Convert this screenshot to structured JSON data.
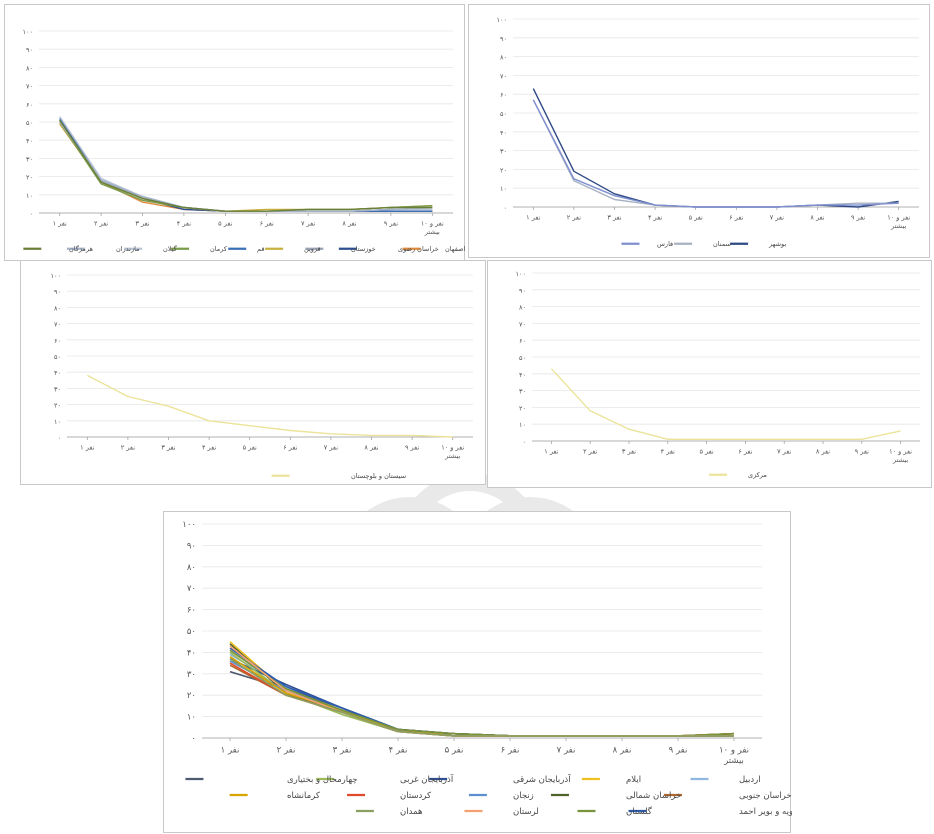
{
  "y_ticks": [
    "۰",
    "۱۰",
    "۲۰",
    "۳۰",
    "۴۰",
    "۵۰",
    "۶۰",
    "۷۰",
    "۸۰",
    "۹۰",
    "۱۰۰"
  ],
  "chart_data": [
    {
      "id": "p1",
      "type": "line",
      "categories": [
        "۱ نفر",
        "۲ نفر",
        "۳ نفر",
        "۴ نفر",
        "۵ نفر",
        "۶ نفر",
        "۷ نفر",
        "۸ نفر",
        "۹ نفر",
        "۱۰ نفر و بیشتر"
      ],
      "ylim": [
        0,
        100
      ],
      "series": [
        {
          "name": "اصفهان",
          "color": "#e08a3c",
          "values": [
            49,
            17,
            6,
            2,
            1,
            1,
            1,
            1,
            1,
            1
          ]
        },
        {
          "name": "خراسان رضوی",
          "color": "#2f4f8f",
          "values": [
            51,
            17,
            8,
            2,
            1,
            1,
            1,
            1,
            1,
            1
          ]
        },
        {
          "name": "خوزستان",
          "color": "#9aa3b5",
          "values": [
            50,
            18,
            8,
            3,
            1,
            1,
            1,
            1,
            2,
            2
          ]
        },
        {
          "name": "قزوین",
          "color": "#c8b040",
          "values": [
            49,
            17,
            8,
            3,
            1,
            2,
            2,
            2,
            3,
            4
          ]
        },
        {
          "name": "قم",
          "color": "#3b6fb6",
          "values": [
            52,
            18,
            9,
            3,
            1,
            1,
            1,
            1,
            1,
            1
          ]
        },
        {
          "name": "کرمان",
          "color": "#7a9c4a",
          "values": [
            50,
            16,
            7,
            3,
            1,
            1,
            2,
            2,
            3,
            4
          ]
        },
        {
          "name": "گیلان",
          "color": "#b9c4d6",
          "values": [
            53,
            19,
            9,
            3,
            1,
            1,
            1,
            1,
            2,
            2
          ]
        },
        {
          "name": "مازندران",
          "color": "#a5b3c9",
          "values": [
            50,
            18,
            9,
            3,
            1,
            1,
            1,
            1,
            2,
            3
          ]
        },
        {
          "name": "هرمزگان",
          "color": "#6b7f3a",
          "values": [
            51,
            17,
            8,
            3,
            1,
            1,
            2,
            2,
            3,
            3
          ]
        }
      ]
    },
    {
      "id": "p2",
      "type": "line",
      "categories": [
        "۱ نفر",
        "۲ نفر",
        "۳ نفر",
        "۴ نفر",
        "۵ نفر",
        "۶ نفر",
        "۷ نفر",
        "۸ نفر",
        "۹ نفر",
        "۱۰ نفر و بیشتر"
      ],
      "ylim": [
        0,
        100
      ],
      "series": [
        {
          "name": "بوشهر",
          "color": "#2e4a85",
          "values": [
            63,
            19,
            7,
            1,
            0,
            0,
            0,
            1,
            0,
            3
          ]
        },
        {
          "name": "سمنان",
          "color": "#a9b2c2",
          "values": [
            57,
            14,
            4,
            1,
            0,
            0,
            0,
            1,
            2,
            2
          ]
        },
        {
          "name": "فارس",
          "color": "#7f8fd0",
          "values": [
            57,
            15,
            6,
            1,
            0,
            0,
            0,
            1,
            1,
            2
          ]
        }
      ]
    },
    {
      "id": "p3",
      "type": "line",
      "categories": [
        "۱ نفر",
        "۲ نفر",
        "۳ نفر",
        "۴ نفر",
        "۵ نفر",
        "۶ نفر",
        "۷ نفر",
        "۸ نفر",
        "۹ نفر",
        "۱۰ نفر و بیشتر"
      ],
      "ylim": [
        0,
        100
      ],
      "series": [
        {
          "name": "سیستان و بلوچستان",
          "color": "#ece39a",
          "values": [
            38,
            25,
            19,
            10,
            7,
            4,
            2,
            1,
            1,
            0
          ]
        }
      ]
    },
    {
      "id": "p4",
      "type": "line",
      "categories": [
        "۱ نفر",
        "۲ نفر",
        "۳ نفر",
        "۴ نفر",
        "۵ نفر",
        "۶ نفر",
        "۷ نفر",
        "۸ نفر",
        "۹ نفر",
        "۱۰ نفر و بیشتر"
      ],
      "ylim": [
        0,
        100
      ],
      "series": [
        {
          "name": "مرکزی",
          "color": "#ece39a",
          "values": [
            43,
            18,
            7,
            1,
            1,
            1,
            1,
            1,
            1,
            6
          ]
        }
      ]
    },
    {
      "id": "p5",
      "type": "line",
      "categories": [
        "۱ نفر",
        "۲ نفر",
        "۳ نفر",
        "۴ نفر",
        "۵ نفر",
        "۶ نفر",
        "۷ نفر",
        "۸ نفر",
        "۹ نفر",
        "۱۰ نفر و بیشتر"
      ],
      "ylim": [
        0,
        100
      ],
      "series": [
        {
          "name": "اردبیل",
          "color": "#8fb7df",
          "values": [
            39,
            24,
            14,
            4,
            2,
            1,
            1,
            1,
            1,
            2
          ]
        },
        {
          "name": "ایلام",
          "color": "#f0c020",
          "values": [
            45,
            22,
            13,
            3,
            2,
            1,
            1,
            1,
            1,
            2
          ]
        },
        {
          "name": "آذربایجان شرقی",
          "color": "#2e4f96",
          "values": [
            37,
            25,
            14,
            3,
            2,
            1,
            1,
            1,
            1,
            1
          ]
        },
        {
          "name": "آذربایجان غربی",
          "color": "#9bbb59",
          "values": [
            40,
            21,
            11,
            3,
            1,
            1,
            1,
            1,
            1,
            2
          ]
        },
        {
          "name": "چهارمحال و بختیاری",
          "color": "#4d5a70",
          "values": [
            31,
            23,
            14,
            4,
            2,
            1,
            1,
            1,
            1,
            1
          ]
        },
        {
          "name": "خراسان جنوبی",
          "color": "#b06a30",
          "values": [
            34,
            20,
            13,
            4,
            2,
            1,
            1,
            1,
            1,
            2
          ]
        },
        {
          "name": "خراسان شمالی",
          "color": "#4f6228",
          "values": [
            44,
            21,
            12,
            3,
            2,
            1,
            1,
            1,
            1,
            1
          ]
        },
        {
          "name": "زنجان",
          "color": "#5b8fd0",
          "values": [
            36,
            22,
            13,
            3,
            1,
            1,
            1,
            1,
            1,
            1
          ]
        },
        {
          "name": "کردستان",
          "color": "#e04a2a",
          "values": [
            35,
            20,
            12,
            3,
            1,
            1,
            1,
            1,
            1,
            2
          ]
        },
        {
          "name": "کرمانشاه",
          "color": "#d9a400",
          "values": [
            38,
            21,
            13,
            3,
            2,
            1,
            1,
            1,
            1,
            1
          ]
        },
        {
          "name": "کهگیلویه و بویر احمد",
          "color": "#2d5db0",
          "values": [
            42,
            24,
            14,
            4,
            2,
            1,
            1,
            1,
            1,
            1
          ]
        },
        {
          "name": "گلستان",
          "color": "#77933c",
          "values": [
            41,
            23,
            13,
            4,
            2,
            1,
            1,
            1,
            1,
            2
          ]
        },
        {
          "name": "لرستان",
          "color": "#f4a070",
          "values": [
            43,
            22,
            12,
            3,
            1,
            1,
            1,
            1,
            1,
            1
          ]
        },
        {
          "name": "همدان",
          "color": "#8aa060",
          "values": [
            37,
            20,
            12,
            3,
            1,
            1,
            1,
            1,
            1,
            1
          ]
        }
      ]
    }
  ]
}
